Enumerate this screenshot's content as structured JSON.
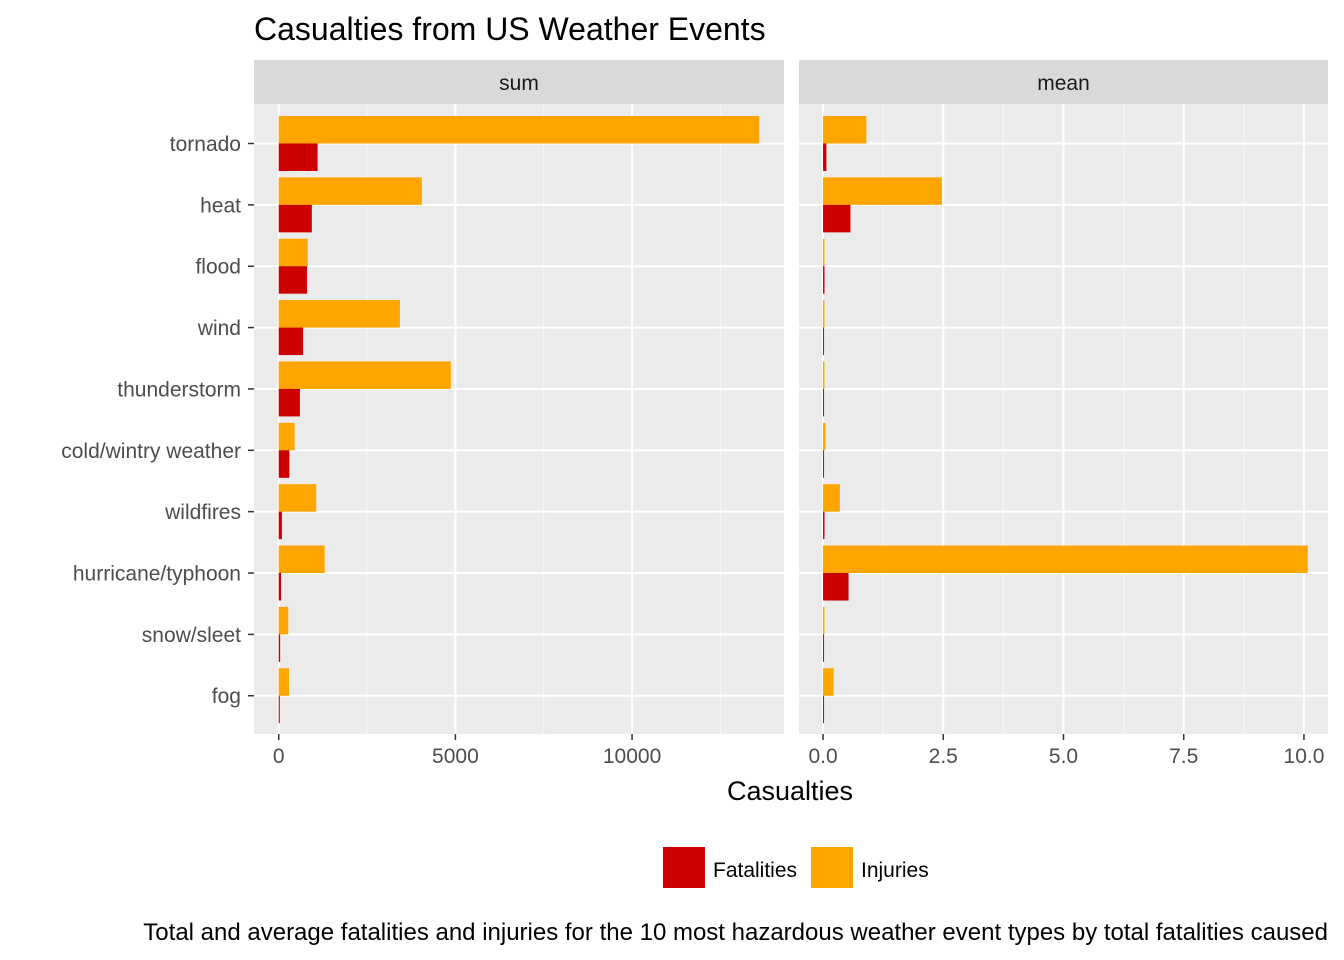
{
  "chart_data": {
    "type": "bar",
    "orientation": "horizontal",
    "title": "Casualties from US Weather Events",
    "xlabel": "Casualties",
    "caption": "Total and average fatalities and injuries for the 10 most hazardous weather event types by total fatalities caused",
    "categories": [
      "tornado",
      "heat",
      "flood",
      "wind",
      "thunderstorm",
      "cold/wintry weather",
      "wildfires",
      "hurricane/typhoon",
      "snow/sleet",
      "fog"
    ],
    "legend": {
      "position": "bottom",
      "entries": [
        {
          "name": "Fatalities",
          "color": "#CC0000"
        },
        {
          "name": "Injuries",
          "color": "#FFA500"
        }
      ]
    },
    "panels": [
      {
        "strip": "sum",
        "xlim": [
          -700,
          14300
        ],
        "ticks": [
          0,
          5000,
          10000
        ],
        "tick_labels": [
          "0",
          "5000",
          "10000"
        ],
        "minor_ticks": [
          2500,
          7500,
          12500
        ],
        "series": [
          {
            "name": "Fatalities",
            "values": [
              1100,
              937,
              800,
              690,
              600,
              300,
              90,
              65,
              40,
              30
            ]
          },
          {
            "name": "Injuries",
            "values": [
              13600,
              4050,
              820,
              3430,
              4870,
              450,
              1060,
              1300,
              270,
              290
            ]
          }
        ]
      },
      {
        "strip": "mean",
        "xlim": [
          -0.5,
          10.5
        ],
        "ticks": [
          0,
          2.5,
          5,
          7.5,
          10
        ],
        "tick_labels": [
          "0.0",
          "2.5",
          "5.0",
          "7.5",
          "10.0"
        ],
        "minor_ticks": [
          1.25,
          3.75,
          6.25,
          8.75
        ],
        "series": [
          {
            "name": "Fatalities",
            "values": [
              0.07,
              0.57,
              0.03,
              0.01,
              0.01,
              0.02,
              0.03,
              0.53,
              0.01,
              0.02
            ]
          },
          {
            "name": "Injuries",
            "values": [
              0.9,
              2.47,
              0.03,
              0.03,
              0.03,
              0.05,
              0.35,
              10.08,
              0.03,
              0.22
            ]
          }
        ]
      }
    ],
    "grid": true
  }
}
